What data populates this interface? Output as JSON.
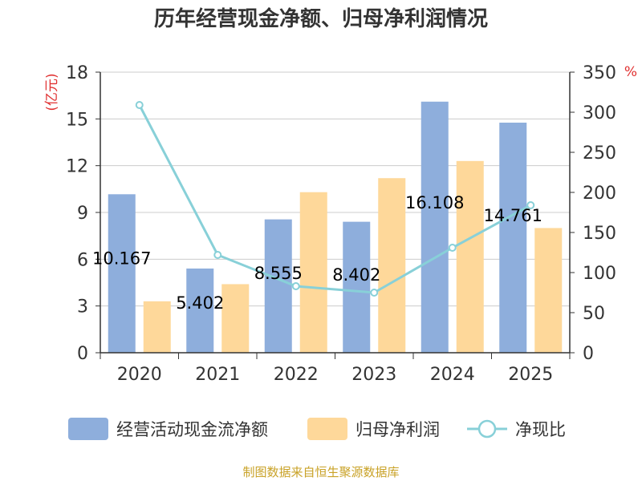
{
  "chart_data": {
    "type": "bar",
    "title": "历年经营现金净额、归母净利润情况",
    "categories": [
      "2020",
      "2021",
      "2022",
      "2023",
      "2024",
      "2025"
    ],
    "left_axis": {
      "unit_label": "(亿元)",
      "ylim": [
        0,
        18
      ],
      "ticks": [
        0,
        3,
        6,
        9,
        12,
        15,
        18
      ]
    },
    "right_axis": {
      "unit_label": "%",
      "ylim": [
        0,
        350
      ],
      "ticks": [
        0,
        50,
        100,
        150,
        200,
        250,
        300,
        350
      ]
    },
    "series": [
      {
        "name": "经营活动现金流净额",
        "kind": "bar",
        "axis": "left",
        "color": "#8eaedc",
        "values": [
          10.167,
          5.402,
          8.555,
          8.402,
          16.108,
          14.761
        ],
        "labels": [
          "10.167",
          "5.402",
          "8.555",
          "8.402",
          "16.108",
          "14.761"
        ]
      },
      {
        "name": "归母净利润",
        "kind": "bar",
        "axis": "left",
        "color": "#fed89a",
        "values": [
          3.3,
          4.4,
          10.3,
          11.2,
          12.3,
          8.0
        ]
      },
      {
        "name": "净现比",
        "kind": "line",
        "axis": "right",
        "color": "#88d0d8",
        "values": [
          309,
          122,
          83,
          75,
          131,
          184
        ]
      }
    ],
    "grid": true
  },
  "source_note": "制图数据来自恒生聚源数据库"
}
